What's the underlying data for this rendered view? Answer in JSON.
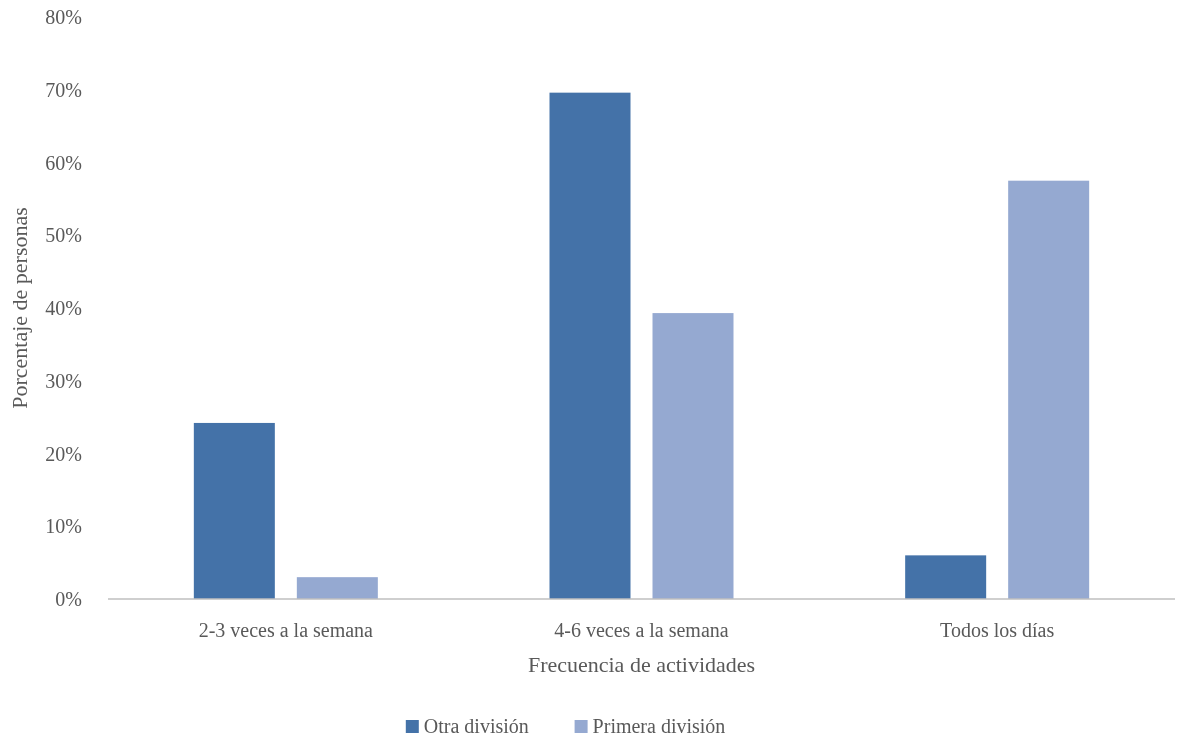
{
  "chart_data": {
    "type": "bar",
    "xlabel": "Frecuencia de actividades",
    "ylabel": "Porcentaje de personas",
    "categories": [
      "2-3 veces a la semana",
      "4-6 veces a la semana",
      "Todos los días"
    ],
    "series": [
      {
        "name": "Otra división",
        "color": "#4472a8",
        "values": [
          24.2,
          69.6,
          6.0
        ]
      },
      {
        "name": "Primera división",
        "color": "#95a9d1",
        "values": [
          3.0,
          39.3,
          57.5
        ]
      }
    ],
    "ylim": [
      0,
      80
    ],
    "yticks": [
      {
        "value": 0,
        "label": "0%"
      },
      {
        "value": 10,
        "label": "10%"
      },
      {
        "value": 20,
        "label": "20%"
      },
      {
        "value": 30,
        "label": "30%"
      },
      {
        "value": 40,
        "label": "40%"
      },
      {
        "value": 50,
        "label": "50%"
      },
      {
        "value": 60,
        "label": "60%"
      },
      {
        "value": 70,
        "label": "70%"
      },
      {
        "value": 80,
        "label": "80%"
      }
    ],
    "grid": false,
    "legend": "bottom"
  }
}
